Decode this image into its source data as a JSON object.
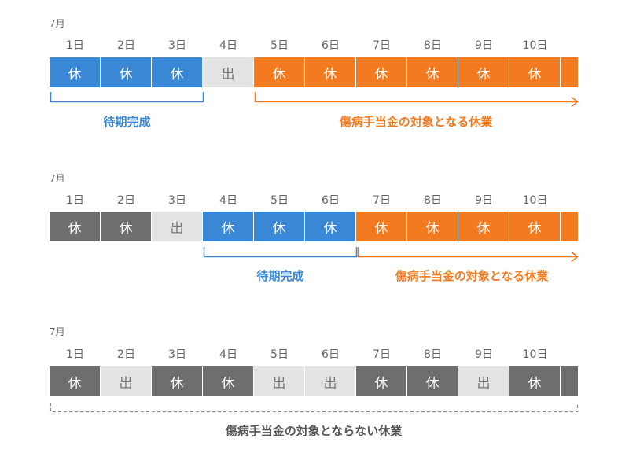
{
  "colors": {
    "blue": "#3a87d6",
    "orange": "#f47a20",
    "dark_gray": "#6e6e6e",
    "light_gray": "#e3e3e3"
  },
  "days": [
    "1日",
    "2日",
    "3日",
    "4日",
    "5日",
    "6日",
    "7日",
    "8日",
    "9日",
    "10日"
  ],
  "sections": [
    {
      "month": "7月",
      "cells": [
        {
          "text": "休",
          "type": "blue"
        },
        {
          "text": "休",
          "type": "blue"
        },
        {
          "text": "休",
          "type": "blue"
        },
        {
          "text": "出",
          "type": "light"
        },
        {
          "text": "休",
          "type": "orange"
        },
        {
          "text": "休",
          "type": "orange"
        },
        {
          "text": "休",
          "type": "orange"
        },
        {
          "text": "休",
          "type": "orange"
        },
        {
          "text": "休",
          "type": "orange"
        },
        {
          "text": "休",
          "type": "orange"
        }
      ],
      "tail": "orange",
      "waiting_label": "待期完成",
      "benefit_label": "傷病手当金の対象となる休業"
    },
    {
      "month": "7月",
      "cells": [
        {
          "text": "休",
          "type": "gray"
        },
        {
          "text": "休",
          "type": "gray"
        },
        {
          "text": "出",
          "type": "light"
        },
        {
          "text": "休",
          "type": "blue"
        },
        {
          "text": "休",
          "type": "blue"
        },
        {
          "text": "休",
          "type": "blue"
        },
        {
          "text": "休",
          "type": "orange"
        },
        {
          "text": "休",
          "type": "orange"
        },
        {
          "text": "休",
          "type": "orange"
        },
        {
          "text": "休",
          "type": "orange"
        }
      ],
      "tail": "orange",
      "waiting_label": "待期完成",
      "benefit_label": "傷病手当金の対象となる休業"
    },
    {
      "month": "7月",
      "cells": [
        {
          "text": "休",
          "type": "gray"
        },
        {
          "text": "出",
          "type": "light"
        },
        {
          "text": "休",
          "type": "gray"
        },
        {
          "text": "休",
          "type": "gray"
        },
        {
          "text": "出",
          "type": "light"
        },
        {
          "text": "出",
          "type": "light"
        },
        {
          "text": "休",
          "type": "gray"
        },
        {
          "text": "休",
          "type": "gray"
        },
        {
          "text": "出",
          "type": "light"
        },
        {
          "text": "休",
          "type": "gray"
        }
      ],
      "tail": "gray",
      "not_covered_label": "傷病手当金の対象とならない休業"
    }
  ]
}
